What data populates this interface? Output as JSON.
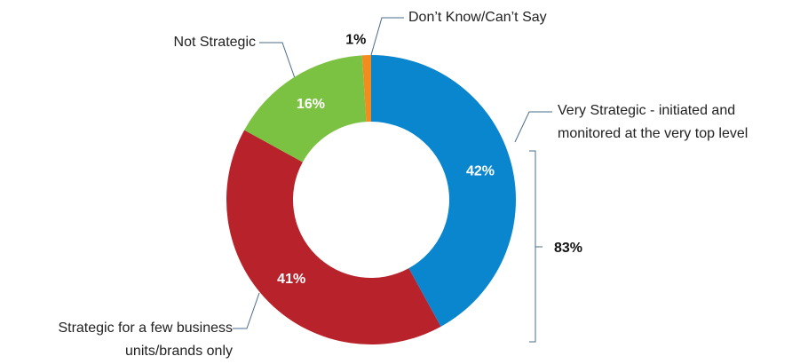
{
  "chart_data": {
    "type": "pie",
    "categories": [
      "Very Strategic - initiated and\nmonitored at the very top level",
      "Strategic for a few business\nunits/brands  only",
      "Not Strategic",
      "Don’t Know/Can’t Say"
    ],
    "values": [
      42,
      41,
      16,
      1
    ],
    "value_labels": [
      "42%",
      "41%",
      "16%",
      "1%"
    ],
    "colors": [
      "#0a86cf",
      "#b8232b",
      "#7cc242",
      "#f28c1e"
    ],
    "annotation": "83%"
  }
}
